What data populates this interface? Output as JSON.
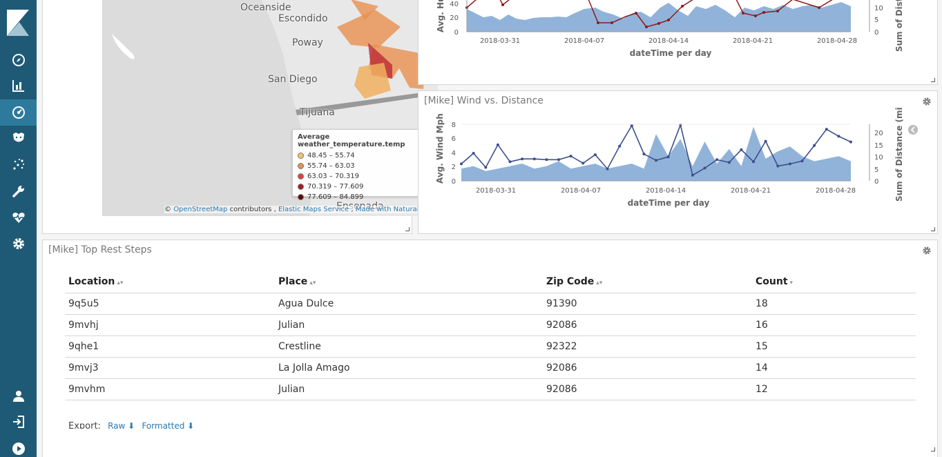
{
  "nav": {
    "items": [
      {
        "name": "nav-discover",
        "icon": "compass-icon"
      },
      {
        "name": "nav-visualize",
        "icon": "bar-chart-icon"
      },
      {
        "name": "nav-dashboard",
        "icon": "dashboard-icon"
      },
      {
        "name": "nav-timelion",
        "icon": "timelion-icon"
      },
      {
        "name": "nav-ml",
        "icon": "machine-learning-icon"
      },
      {
        "name": "nav-dev-tools",
        "icon": "wrench-icon"
      },
      {
        "name": "nav-monitoring",
        "icon": "heartbeat-icon"
      },
      {
        "name": "nav-management",
        "icon": "gear-icon"
      },
      {
        "name": "nav-user",
        "icon": "user-icon"
      },
      {
        "name": "nav-logout",
        "icon": "logout-icon"
      },
      {
        "name": "nav-collapse",
        "icon": "play-icon"
      }
    ]
  },
  "map": {
    "labels": [
      "Oceanside",
      "Escondido",
      "Poway",
      "San Diego",
      "Tijuana",
      "Ensenada"
    ],
    "legend_title": "Average weather_temperature.temp",
    "legend": [
      {
        "range": "48.45 – 55.74",
        "color": "#f5c26b"
      },
      {
        "range": "55.74 – 63.03",
        "color": "#e9904d"
      },
      {
        "range": "63.03 – 70.319",
        "color": "#d9453f"
      },
      {
        "range": "70.319 – 77.609",
        "color": "#a81c1c"
      },
      {
        "range": "77.609 – 84.899",
        "color": "#5c0b0b"
      }
    ],
    "attribution": {
      "copyright": "©",
      "osm": "OpenStreetMap",
      "contributors": "contributors ,",
      "ems": "Elastic Maps Service",
      "sep": ",",
      "natural_earth": "Made with NaturalEarth"
    }
  },
  "humidity_chart": {
    "x_ticks": [
      "2018-03-31",
      "2018-04-07",
      "2018-04-14",
      "2018-04-21",
      "2018-04-28"
    ],
    "left_ticks": [
      "40",
      "20",
      "0"
    ],
    "right_ticks": [
      "10",
      "5",
      "0"
    ],
    "xlabel": "dateTime per day",
    "ylabel_left": "Avg. Hu",
    "ylabel_right": "Sum of Dista"
  },
  "chart_data": {
    "type": "line",
    "title": "[Mike] Wind vs. Distance",
    "xlabel": "dateTime per day",
    "ylabel": "Avg. Wind Mph",
    "ylabel_right": "Sum of Distance (mi",
    "x_ticks": [
      "2018-03-31",
      "2018-04-07",
      "2018-04-14",
      "2018-04-21",
      "2018-04-28"
    ],
    "y_ticks": [
      "8",
      "6",
      "4",
      "2",
      "0"
    ],
    "y2_ticks": [
      "20",
      "15",
      "10",
      "5",
      "0"
    ],
    "ylim": [
      0,
      8
    ],
    "y2lim": [
      0,
      23
    ],
    "series": [
      {
        "values": [
          2.4,
          3.9,
          1.9,
          5.1,
          2.7,
          3.1,
          3.1,
          3.0,
          3.0,
          3.5,
          2.5,
          3.7,
          1.7,
          4.9,
          7.8,
          3.8,
          2.9,
          3.4,
          7.9,
          0.8,
          1.8,
          3.0,
          2.6,
          4.4,
          2.7,
          5.6,
          2.1,
          2.4,
          2.8,
          5.0,
          7.3,
          6.3,
          5.5
        ]
      },
      {
        "values": [
          5,
          6,
          4,
          5,
          6,
          7,
          5,
          6,
          8,
          5,
          6,
          7,
          5,
          6,
          7,
          5,
          19,
          10,
          17,
          6,
          16,
          7,
          13,
          6,
          22,
          9,
          12,
          14,
          10,
          8,
          9,
          10,
          8
        ]
      }
    ]
  },
  "rest_steps": {
    "title": "[Mike] Top Rest Steps",
    "columns": [
      "Location",
      "Place",
      "Zip Code",
      "Count"
    ],
    "rows": [
      [
        "9q5u5",
        "Agua Dulce",
        "91390",
        "18"
      ],
      [
        "9mvhj",
        "Julian",
        "92086",
        "16"
      ],
      [
        "9qhe1",
        "Crestline",
        "92322",
        "15"
      ],
      [
        "9mvj3",
        "La Jolla Amago",
        "92086",
        "14"
      ],
      [
        "9mvhm",
        "Julian",
        "92086",
        "12"
      ]
    ],
    "export_label": "Export:",
    "export_raw": "Raw",
    "export_formatted": "Formatted"
  }
}
